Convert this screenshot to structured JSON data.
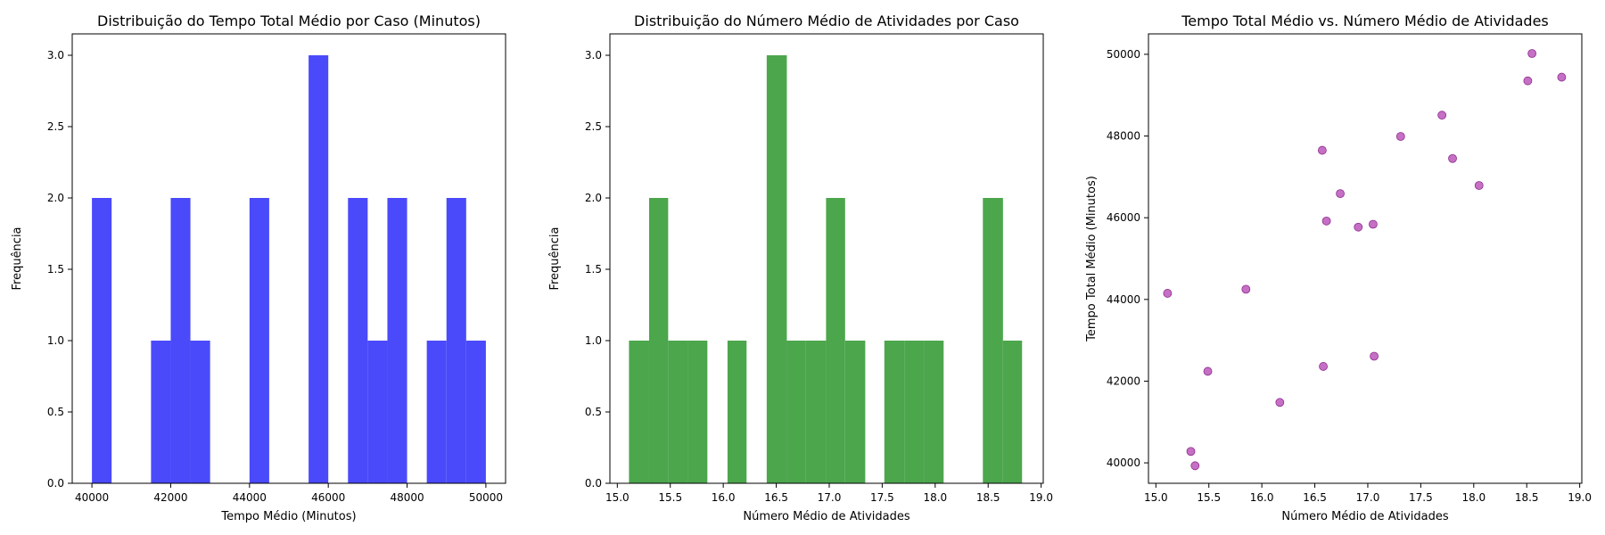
{
  "chart_data": [
    {
      "type": "bar",
      "subtype": "histogram",
      "title": "Distribuição do Tempo Total Médio por Caso (Minutos)",
      "xlabel": "Tempo Médio (Minutos)",
      "ylabel": "Frequência",
      "color": "#4a4afb",
      "xlim": [
        39500,
        50500
      ],
      "ylim": [
        0,
        3.15
      ],
      "xticks": [
        "40000",
        "42000",
        "44000",
        "46000",
        "48000",
        "50000"
      ],
      "yticks": [
        "0.0",
        "0.5",
        "1.0",
        "1.5",
        "2.0",
        "2.5",
        "3.0"
      ],
      "grid": false,
      "bins": [
        {
          "x0": 40000,
          "x1": 40500,
          "count": 2
        },
        {
          "x0": 40500,
          "x1": 41000,
          "count": 0
        },
        {
          "x0": 41000,
          "x1": 41500,
          "count": 0
        },
        {
          "x0": 41500,
          "x1": 42000,
          "count": 1
        },
        {
          "x0": 42000,
          "x1": 42500,
          "count": 2
        },
        {
          "x0": 42500,
          "x1": 43000,
          "count": 1
        },
        {
          "x0": 43000,
          "x1": 43500,
          "count": 0
        },
        {
          "x0": 43500,
          "x1": 44000,
          "count": 0
        },
        {
          "x0": 44000,
          "x1": 44500,
          "count": 2
        },
        {
          "x0": 44500,
          "x1": 45000,
          "count": 0
        },
        {
          "x0": 45000,
          "x1": 45500,
          "count": 0
        },
        {
          "x0": 45500,
          "x1": 46000,
          "count": 3
        },
        {
          "x0": 46000,
          "x1": 46500,
          "count": 0
        },
        {
          "x0": 46500,
          "x1": 47000,
          "count": 2
        },
        {
          "x0": 47000,
          "x1": 47500,
          "count": 1
        },
        {
          "x0": 47500,
          "x1": 48000,
          "count": 2
        },
        {
          "x0": 48000,
          "x1": 48500,
          "count": 0
        },
        {
          "x0": 48500,
          "x1": 49000,
          "count": 1
        },
        {
          "x0": 49000,
          "x1": 49500,
          "count": 2
        },
        {
          "x0": 49500,
          "x1": 50000,
          "count": 1
        }
      ]
    },
    {
      "type": "bar",
      "subtype": "histogram",
      "title": "Distribuição do Número Médio de Atividades por Caso",
      "xlabel": "Número Médio de Atividades",
      "ylabel": "Frequência",
      "color": "#4ca64c",
      "xlim": [
        14.93,
        19.02
      ],
      "ylim": [
        0,
        3.15
      ],
      "xticks": [
        "15.0",
        "15.5",
        "16.0",
        "16.5",
        "17.0",
        "17.5",
        "18.0",
        "18.5",
        "19.0"
      ],
      "yticks": [
        "0.0",
        "0.5",
        "1.0",
        "1.5",
        "2.0",
        "2.5",
        "3.0"
      ],
      "grid": false,
      "bins": [
        {
          "x0": 15.11,
          "x1": 15.3,
          "count": 1
        },
        {
          "x0": 15.3,
          "x1": 15.48,
          "count": 2
        },
        {
          "x0": 15.48,
          "x1": 15.67,
          "count": 1
        },
        {
          "x0": 15.67,
          "x1": 15.85,
          "count": 1
        },
        {
          "x0": 15.85,
          "x1": 16.04,
          "count": 0
        },
        {
          "x0": 16.04,
          "x1": 16.22,
          "count": 1
        },
        {
          "x0": 16.22,
          "x1": 16.41,
          "count": 0
        },
        {
          "x0": 16.41,
          "x1": 16.6,
          "count": 3
        },
        {
          "x0": 16.6,
          "x1": 16.78,
          "count": 1
        },
        {
          "x0": 16.78,
          "x1": 16.97,
          "count": 1
        },
        {
          "x0": 16.97,
          "x1": 17.15,
          "count": 2
        },
        {
          "x0": 17.15,
          "x1": 17.34,
          "count": 1
        },
        {
          "x0": 17.34,
          "x1": 17.52,
          "count": 0
        },
        {
          "x0": 17.52,
          "x1": 17.71,
          "count": 1
        },
        {
          "x0": 17.71,
          "x1": 17.9,
          "count": 1
        },
        {
          "x0": 17.9,
          "x1": 18.08,
          "count": 1
        },
        {
          "x0": 18.08,
          "x1": 18.27,
          "count": 0
        },
        {
          "x0": 18.27,
          "x1": 18.45,
          "count": 0
        },
        {
          "x0": 18.45,
          "x1": 18.64,
          "count": 2
        },
        {
          "x0": 18.64,
          "x1": 18.82,
          "count": 1
        }
      ]
    },
    {
      "type": "scatter",
      "title": "Tempo Total Médio vs. Número Médio de Atividades",
      "xlabel": "Número Médio de Atividades",
      "ylabel": "Tempo Total Médio (Minutos)",
      "color": "#bf5fbf",
      "xlim": [
        14.93,
        19.02
      ],
      "ylim": [
        39500,
        50500
      ],
      "xticks": [
        "15.0",
        "15.5",
        "16.0",
        "16.5",
        "17.0",
        "17.5",
        "18.0",
        "18.5",
        "19.0"
      ],
      "yticks": [
        "40000",
        "42000",
        "44000",
        "46000",
        "48000",
        "50000"
      ],
      "grid": false,
      "points": [
        {
          "x": 15.11,
          "y": 44150
        },
        {
          "x": 15.33,
          "y": 40280
        },
        {
          "x": 15.37,
          "y": 39930
        },
        {
          "x": 15.49,
          "y": 42240
        },
        {
          "x": 15.85,
          "y": 44250
        },
        {
          "x": 16.17,
          "y": 41480
        },
        {
          "x": 16.57,
          "y": 47650
        },
        {
          "x": 16.58,
          "y": 42360
        },
        {
          "x": 16.61,
          "y": 45920
        },
        {
          "x": 16.74,
          "y": 46590
        },
        {
          "x": 16.91,
          "y": 45770
        },
        {
          "x": 17.05,
          "y": 45840
        },
        {
          "x": 17.06,
          "y": 42610
        },
        {
          "x": 17.31,
          "y": 47990
        },
        {
          "x": 17.7,
          "y": 48510
        },
        {
          "x": 17.8,
          "y": 47450
        },
        {
          "x": 18.05,
          "y": 46790
        },
        {
          "x": 18.51,
          "y": 49350
        },
        {
          "x": 18.55,
          "y": 50020
        },
        {
          "x": 18.83,
          "y": 49440
        }
      ]
    }
  ]
}
